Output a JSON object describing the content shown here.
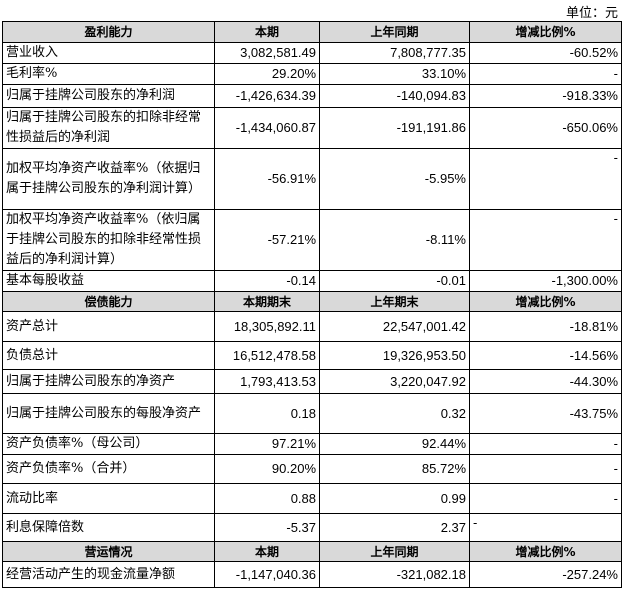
{
  "unit_label": "单位：元",
  "sections": [
    {
      "headers": [
        "盈利能力",
        "本期",
        "上年同期",
        "增减比例%"
      ],
      "rows": [
        [
          "营业收入",
          "3,082,581.49",
          "7,808,777.35",
          "-60.52%"
        ],
        [
          "毛利率%",
          "29.20%",
          "33.10%",
          "-"
        ],
        [
          "归属于挂牌公司股东的净利润",
          "-1,426,634.39",
          "-140,094.83",
          "-918.33%"
        ],
        [
          "归属于挂牌公司股东的扣除非经常性损益后的净利润",
          "-1,434,060.87",
          "-191,191.86",
          "-650.06%"
        ],
        [
          "加权平均净资产收益率%（依据归属于挂牌公司股东的净利润计算）",
          "-56.91%",
          "-5.95%",
          "-"
        ],
        [
          "加权平均净资产收益率%（依归属于挂牌公司股东的扣除非经常性损益后的净利润计算）",
          "-57.21%",
          "-8.11%",
          "-"
        ],
        [
          "基本每股收益",
          "-0.14",
          "-0.01",
          "-1,300.00%"
        ]
      ]
    },
    {
      "headers": [
        "偿债能力",
        "本期期末",
        "上年期末",
        "增减比例%"
      ],
      "rows": [
        [
          "资产总计",
          "18,305,892.11",
          "22,547,001.42",
          "-18.81%"
        ],
        [
          "负债总计",
          "16,512,478.58",
          "19,326,953.50",
          "-14.56%"
        ],
        [
          "归属于挂牌公司股东的净资产",
          "1,793,413.53",
          "3,220,047.92",
          "-44.30%"
        ],
        [
          "归属于挂牌公司股东的每股净资产",
          "0.18",
          "0.32",
          "-43.75%"
        ],
        [
          "资产负债率%（母公司）",
          "97.21%",
          "92.44%",
          "-"
        ],
        [
          "资产负债率%（合并）",
          "90.20%",
          "85.72%",
          "-"
        ],
        [
          "流动比率",
          "0.88",
          "0.99",
          "-"
        ],
        [
          "利息保障倍数",
          "-5.37",
          "2.37",
          "-"
        ]
      ]
    },
    {
      "headers": [
        "营运情况",
        "本期",
        "上年同期",
        "增减比例%"
      ],
      "rows": [
        [
          "经营活动产生的现金流量净额",
          "-1,147,040.36",
          "-321,082.18",
          "-257.24%"
        ]
      ]
    }
  ]
}
